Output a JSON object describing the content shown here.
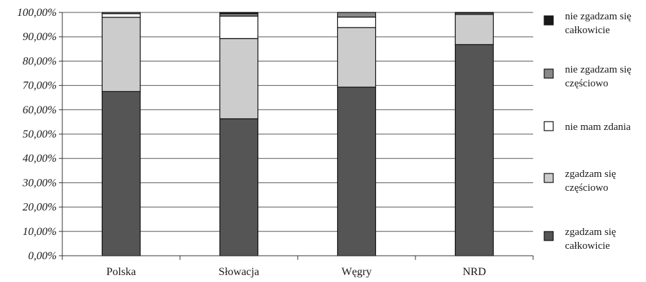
{
  "chart_data": {
    "type": "bar",
    "stacked": true,
    "categories": [
      "Polska",
      "Słowacja",
      "Węgry",
      "NRD"
    ],
    "series": [
      {
        "name": "zgadzam się całkowicie",
        "color": "#555555",
        "values": [
          67.5,
          56.3,
          69.3,
          86.8
        ]
      },
      {
        "name": "zgadzam się częściowo",
        "color": "#cccccc",
        "values": [
          30.5,
          33.0,
          24.5,
          12.4
        ]
      },
      {
        "name": "nie mam zdania",
        "color": "#ffffff",
        "values": [
          1.5,
          9.2,
          4.3,
          0.0
        ]
      },
      {
        "name": "nie zgadzam się częściowo",
        "color": "#888888",
        "values": [
          0.5,
          1.0,
          1.9,
          0.6
        ]
      },
      {
        "name": "nie zgadzam się całkowicie",
        "color": "#1a1a1a",
        "values": [
          0.0,
          0.5,
          0.0,
          0.2
        ]
      }
    ],
    "legend_order": [
      4,
      3,
      2,
      1,
      0
    ],
    "legend_position": "right",
    "yticks": [
      "0,00%",
      "10,00%",
      "20,00%",
      "30,00%",
      "40,00%",
      "50,00%",
      "60,00%",
      "70,00%",
      "80,00%",
      "90,00%",
      "100,00%"
    ],
    "ylim": [
      0,
      100
    ],
    "grid": true
  }
}
